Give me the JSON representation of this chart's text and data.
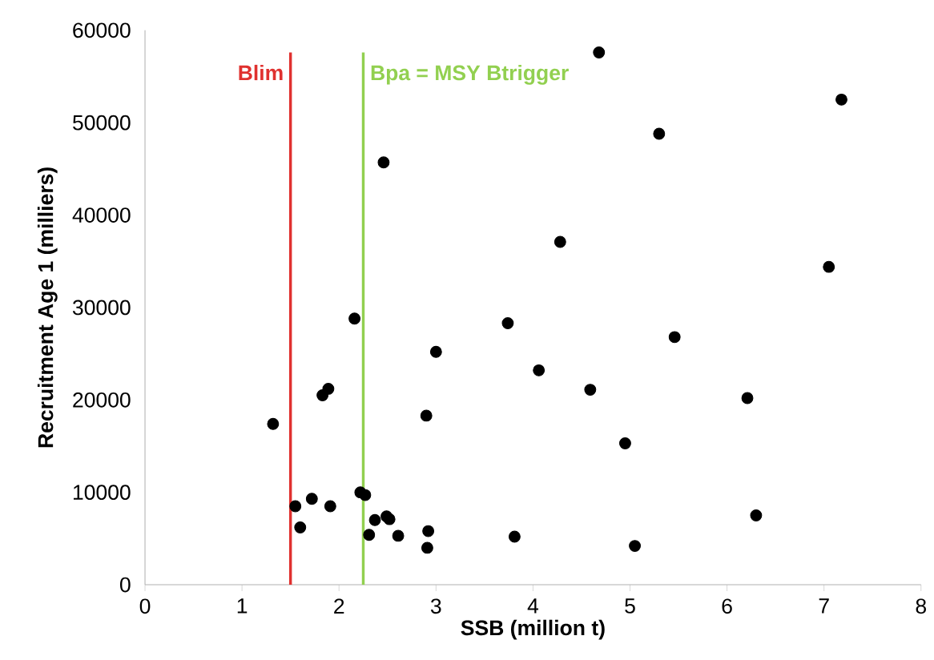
{
  "chart_data": {
    "type": "scatter",
    "xlabel": "SSB (million t)",
    "ylabel": "Recruitment Age 1  (milliers)",
    "xlim": [
      0,
      8
    ],
    "ylim": [
      0,
      60000
    ],
    "xticks": [
      0,
      1,
      2,
      3,
      4,
      5,
      6,
      7,
      8
    ],
    "yticks": [
      0,
      10000,
      20000,
      30000,
      40000,
      50000,
      60000
    ],
    "grid": false,
    "legend": false,
    "marker": "circle",
    "series": [
      {
        "color": "#000000",
        "x": [
          2.46,
          2.16,
          3.74,
          3.0,
          4.06,
          1.89,
          1.83,
          1.32,
          2.9,
          2.22,
          2.27,
          1.72,
          1.55,
          1.91,
          1.6,
          2.37,
          2.49,
          2.52,
          2.31,
          2.61,
          2.92,
          2.91,
          3.81,
          4.68,
          7.18,
          5.3,
          4.28,
          7.05,
          5.46,
          4.59,
          6.21,
          4.95,
          6.3,
          5.05
        ],
        "values": [
          45700,
          28800,
          28300,
          25200,
          23200,
          21200,
          20500,
          17400,
          18300,
          10000,
          9700,
          9300,
          8500,
          8500,
          6200,
          7000,
          7400,
          7100,
          5400,
          5300,
          5800,
          4000,
          5200,
          57600,
          52500,
          48800,
          37100,
          34400,
          26800,
          21100,
          20200,
          15300,
          7500,
          4200
        ]
      }
    ],
    "ref_lines": [
      {
        "axis": "x",
        "value": 1.5,
        "label": "Blim",
        "color": "#e0312f"
      },
      {
        "axis": "x",
        "value": 2.25,
        "label": "Bpa = MSY Btrigger",
        "color": "#92d050"
      }
    ]
  }
}
